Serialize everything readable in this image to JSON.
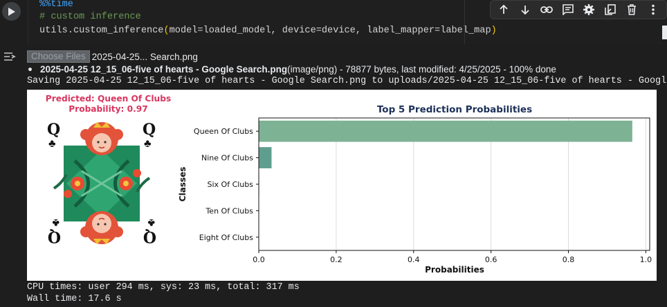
{
  "code": {
    "magic": "%%time",
    "comment": "# custom inference",
    "call_fn": "utils.custom_inference",
    "call_args": "model=loaded_model, device=device, label_mapper=label_map"
  },
  "toolbar": {
    "icons": [
      "arrow-up-icon",
      "arrow-down-icon",
      "link-icon",
      "comment-icon",
      "gear-icon",
      "mirror-cell-icon",
      "delete-icon",
      "more-vert-icon"
    ]
  },
  "upload": {
    "choose_label": "Choose Files",
    "file_short": "2025-04-25... Search.png",
    "file_full": "2025-04-25 12_15_06-five of hearts - Google Search.png",
    "file_meta": "(image/png) - 78877 bytes, last modified: 4/25/2025 - 100% done",
    "saving": "Saving 2025-04-25 12_15_06-five of hearts - Google Search.png to uploads/2025-04-25 12_15_06-five of hearts - Google Sea"
  },
  "prediction": {
    "predicted": "Predicted: Queen Of Clubs",
    "probability": "Probability: 0.97"
  },
  "chart_data": {
    "type": "bar",
    "orientation": "horizontal",
    "title": "Top 5 Prediction Probabilities",
    "xlabel": "Probabilities",
    "ylabel": "Classes",
    "categories": [
      "Queen Of Clubs",
      "Nine Of Clubs",
      "Six Of Clubs",
      "Ten Of Clubs",
      "Eight Of Clubs"
    ],
    "values": [
      0.965,
      0.033,
      0.001,
      0.0005,
      0.0003
    ],
    "xlim": [
      0,
      1.01
    ],
    "xticks": [
      "0.0",
      "0.2",
      "0.4",
      "0.6",
      "0.8",
      "1.0"
    ],
    "grid": "vertical",
    "colors": [
      "#7db394",
      "#5f9e8f",
      "#4a7f8a",
      "#3f6b86",
      "#3a5680"
    ]
  },
  "timing": {
    "cpu": "CPU times: user 294 ms, sys: 23 ms, total: 317 ms",
    "wall": "Wall time: 17.6 s"
  }
}
